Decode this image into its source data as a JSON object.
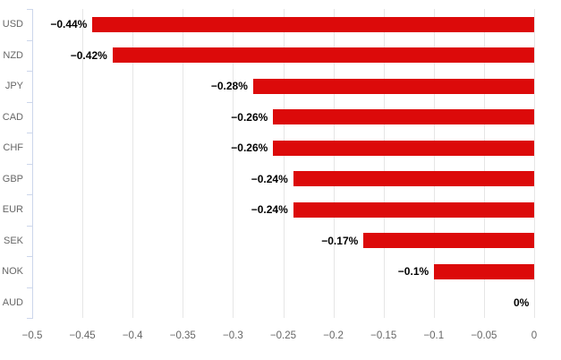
{
  "chart_data": {
    "type": "bar",
    "orientation": "horizontal",
    "title": "",
    "xlabel": "",
    "ylabel": "",
    "categories": [
      "USD",
      "NZD",
      "JPY",
      "CAD",
      "CHF",
      "GBP",
      "EUR",
      "SEK",
      "NOK",
      "AUD"
    ],
    "values": [
      -0.44,
      -0.42,
      -0.28,
      -0.26,
      -0.26,
      -0.24,
      -0.24,
      -0.17,
      -0.1,
      0
    ],
    "data_labels": [
      "−0.44%",
      "−0.42%",
      "−0.28%",
      "−0.26%",
      "−0.26%",
      "−0.24%",
      "−0.24%",
      "−0.17%",
      "−0.1%",
      "0%"
    ],
    "x_tick_values": [
      -0.5,
      -0.45,
      -0.4,
      -0.35,
      -0.3,
      -0.25,
      -0.2,
      -0.15,
      -0.1,
      -0.05,
      0
    ],
    "x_tick_labels": [
      "−0.5",
      "−0.45",
      "−0.4",
      "−0.35",
      "−0.3",
      "−0.25",
      "−0.2",
      "−0.15",
      "−0.1",
      "−0.05",
      "0"
    ],
    "xlim": [
      -0.5,
      0
    ],
    "grid": true,
    "legend": "none",
    "colors": {
      "bar": "#dc0a0a",
      "grid": "#e6e6e6",
      "axis_line": "#ccd6eb",
      "category_label": "#666666",
      "tick_label": "#666666",
      "data_label": "#000000",
      "background": "#ffffff"
    }
  }
}
